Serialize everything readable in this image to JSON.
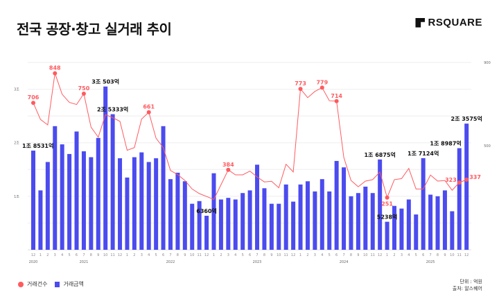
{
  "title": "전국 공장·창고 실거래 추이",
  "logo": "RSQUARE",
  "legend": [
    {
      "label": "거래건수",
      "color": "#ff5a5f"
    },
    {
      "label": "거래금액",
      "color": "#4b4bef"
    }
  ],
  "notes": {
    "unit": "단위 : 억원",
    "source": "출처: 알스퀘어"
  },
  "chart_data": {
    "type": "bar+line",
    "months": [
      "12",
      "1",
      "2",
      "3",
      "4",
      "5",
      "6",
      "7",
      "8",
      "9",
      "10",
      "11",
      "12",
      "1",
      "2",
      "3",
      "4",
      "5",
      "6",
      "7",
      "8",
      "9",
      "10",
      "11",
      "12",
      "1",
      "2",
      "3",
      "4",
      "5",
      "6",
      "7",
      "8",
      "9",
      "10",
      "11",
      "12",
      "1",
      "2",
      "3",
      "4",
      "5",
      "6",
      "7",
      "8",
      "9",
      "10",
      "11",
      "12",
      "1",
      "2",
      "3",
      "4",
      "5",
      "6",
      "7",
      "8",
      "9",
      "10",
      "11",
      "12"
    ],
    "years": [
      {
        "label": "2020",
        "index": 0
      },
      {
        "label": "2021",
        "index": 7
      },
      {
        "label": "2022",
        "index": 19
      },
      {
        "label": "2023",
        "index": 31
      },
      {
        "label": "2024",
        "index": 43
      },
      {
        "label": "2025",
        "index": 55
      }
    ],
    "left_axis": {
      "unit": "조원",
      "range": [
        0,
        3.5
      ],
      "ticks": [
        {
          "v": 1,
          "label": "1조"
        },
        {
          "v": 2,
          "label": "2조"
        },
        {
          "v": 3,
          "label": "3조"
        }
      ]
    },
    "right_axis": {
      "range": [
        0,
        900
      ],
      "ticks": [
        {
          "v": 500,
          "label": "500"
        },
        {
          "v": 900,
          "label": "900"
        }
      ]
    },
    "grid": true,
    "series": [
      {
        "name": "거래금액",
        "type": "bar",
        "color": "#4b4bef",
        "values": [
          1.8531,
          1.11,
          1.64,
          2.31,
          1.97,
          1.79,
          2.21,
          1.84,
          1.73,
          2.09,
          3.0503,
          2.5333,
          1.71,
          1.35,
          1.73,
          1.82,
          1.64,
          1.71,
          2.31,
          1.32,
          1.44,
          1.28,
          0.86,
          0.91,
          0.636,
          1.43,
          0.94,
          0.97,
          0.94,
          1.06,
          1.11,
          1.59,
          1.15,
          0.86,
          0.86,
          1.22,
          0.9,
          1.22,
          1.28,
          1.09,
          1.32,
          1.09,
          1.66,
          1.54,
          1.0,
          1.06,
          1.18,
          1.06,
          1.6875,
          0.5238,
          0.82,
          0.77,
          0.94,
          0.66,
          1.7124,
          1.03,
          1.0,
          1.11,
          0.72,
          1.8987,
          2.3575
        ],
        "labels": [
          {
            "index": 0,
            "text": "1조 8531억"
          },
          {
            "index": 10,
            "text": "3조 503억"
          },
          {
            "index": 11,
            "text": "2조 5333억"
          },
          {
            "index": 24,
            "text": "6360억"
          },
          {
            "index": 48,
            "text": "1조 6875억"
          },
          {
            "index": 49,
            "text": "5238억"
          },
          {
            "index": 54,
            "text": "1조 7124억"
          },
          {
            "index": 59,
            "text": "1조 8987억"
          },
          {
            "index": 60,
            "text": "2조 3575억"
          }
        ]
      },
      {
        "name": "거래건수",
        "type": "line",
        "color": "#ff5a5f",
        "values": [
          706,
          626,
          600,
          848,
          747,
          708,
          698,
          750,
          589,
          541,
          649,
          635,
          617,
          478,
          491,
          628,
          661,
          536,
          491,
          381,
          361,
          333,
          292,
          270,
          256,
          242,
          313,
          384,
          360,
          360,
          378,
          350,
          326,
          329,
          298,
          411,
          374,
          773,
          731,
          761,
          779,
          716,
          714,
          444,
          333,
          303,
          330,
          337,
          374,
          251,
          337,
          342,
          391,
          292,
          292,
          359,
          330,
          333,
          286,
          323,
          337
        ],
        "labels": [
          {
            "index": 0,
            "text": "706"
          },
          {
            "index": 3,
            "text": "848"
          },
          {
            "index": 7,
            "text": "750"
          },
          {
            "index": 16,
            "text": "661"
          },
          {
            "index": 27,
            "text": "384"
          },
          {
            "index": 37,
            "text": "773"
          },
          {
            "index": 40,
            "text": "779"
          },
          {
            "index": 42,
            "text": "714"
          },
          {
            "index": 49,
            "text": "251",
            "below": true
          },
          {
            "index": 59,
            "text": "323",
            "left": true
          },
          {
            "index": 60,
            "text": "337",
            "right": true
          }
        ]
      }
    ]
  }
}
